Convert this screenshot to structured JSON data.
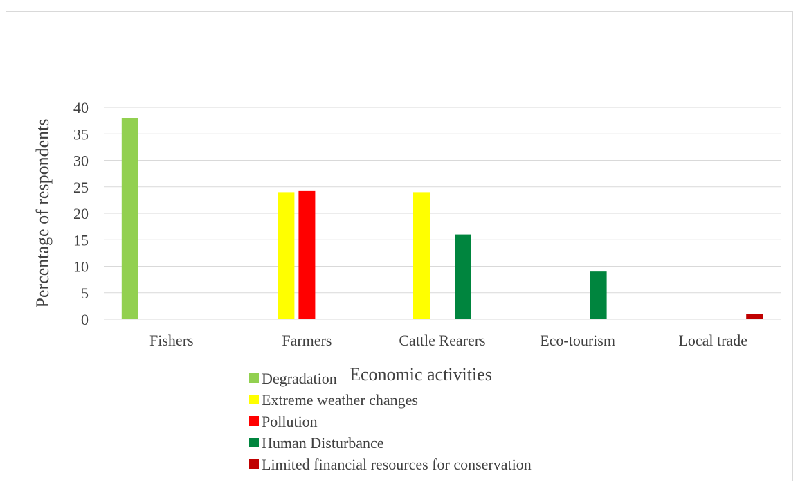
{
  "chart_data": {
    "type": "bar",
    "title": "",
    "xlabel": "Economic activities",
    "ylabel": "Percentage of respondents",
    "categories": [
      "Fishers",
      "Farmers",
      "Cattle Rearers",
      "Eco-tourism",
      "Local trade"
    ],
    "ylim": [
      0,
      40
    ],
    "yticks": [
      0,
      5,
      10,
      15,
      20,
      25,
      30,
      35,
      40
    ],
    "grid": true,
    "legend_position": "bottom",
    "series": [
      {
        "name": "Degradation",
        "color": "#92d050",
        "values": [
          38,
          0,
          0,
          0,
          0
        ]
      },
      {
        "name": "Extreme weather changes",
        "color": "#ffff00",
        "values": [
          0,
          24,
          24,
          0,
          0
        ]
      },
      {
        "name": "Pollution",
        "color": "#ff0000",
        "values": [
          0,
          24.2,
          0,
          0,
          0
        ]
      },
      {
        "name": "Human Disturbance",
        "color": "#00853e",
        "values": [
          0,
          0,
          16,
          9,
          0
        ]
      },
      {
        "name": "Limited financial resources for conservation",
        "color": "#c00000",
        "values": [
          0,
          0,
          0,
          0,
          1
        ]
      }
    ]
  }
}
